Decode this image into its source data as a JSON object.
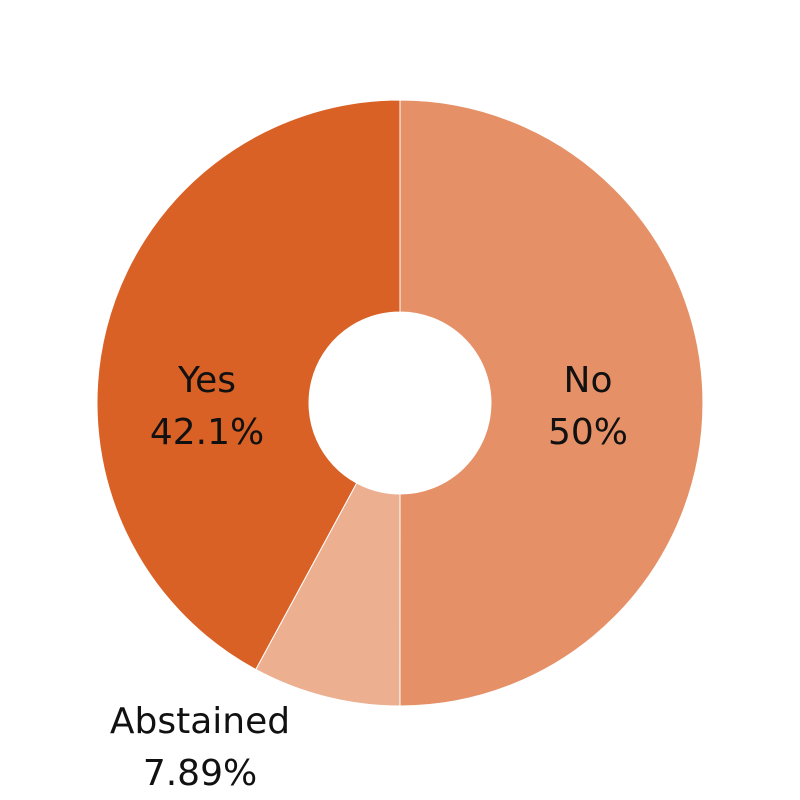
{
  "chart_data": {
    "type": "pie",
    "variant": "donut",
    "title": "",
    "slices": [
      {
        "label": "No",
        "value": 50,
        "value_label": "50%",
        "color": "#e59066"
      },
      {
        "label": "Abstained",
        "value": 7.89,
        "value_label": "7.89%",
        "color": "#ecaf90"
      },
      {
        "label": "Yes",
        "value": 42.1,
        "value_label": "42.1%",
        "color": "#d96125"
      }
    ],
    "start": "12 o'clock",
    "direction": "clockwise",
    "legend": "none",
    "label_style": "name and percent on slice"
  }
}
